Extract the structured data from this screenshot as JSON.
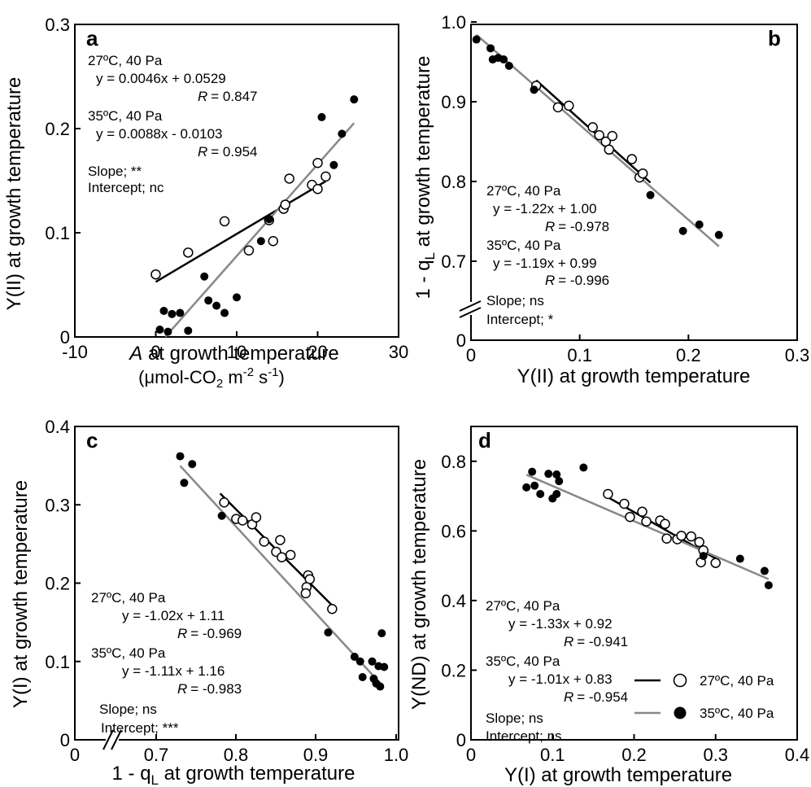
{
  "panels": [
    {
      "label": "a",
      "xlabel": "A at growth temperature",
      "xlabel_italic_prefix": "A",
      "xlabel_rest": " at growth temperature",
      "xunit": "(μmol-CO2 m-2 s-1)",
      "xunit_parts": [
        "(μmol-CO",
        "2",
        " m",
        "-2",
        " s",
        "-1",
        ")"
      ],
      "ylabel": "Y(II) at growth temperature",
      "annotations": {
        "s1_head": "27ºC, 40 Pa",
        "s1_eq": "y = 0.0046x + 0.0529",
        "s1_r": "= 0.847",
        "s2_head": "35ºC, 40 Pa",
        "s2_eq": "y = 0.0088x - 0.0103",
        "s2_r": "= 0.954",
        "slope": "Slope; **",
        "intercept": "Intercept; nc"
      }
    },
    {
      "label": "b",
      "xlabel": "Y(II) at growth temperature",
      "ylabel": "1 - qL at growth temperature",
      "ylabel_parts": [
        "1 - q",
        "L",
        " at growth temperature"
      ],
      "annotations": {
        "s1_head": "27ºC, 40 Pa",
        "s1_eq": "y = -1.22x + 1.00",
        "s1_r": "= -0.978",
        "s2_head": "35ºC, 40 Pa",
        "s2_eq": "y = -1.19x + 0.99",
        "s2_r": "= -0.996",
        "slope": "Slope; ns",
        "intercept": "Intercept; *"
      }
    },
    {
      "label": "c",
      "xlabel": "1 - qL at growth temperature",
      "xlabel_parts": [
        "1 - q",
        "L",
        " at growth temperature"
      ],
      "ylabel": "Y(I) at growth temperature",
      "annotations": {
        "s1_head": "27ºC, 40 Pa",
        "s1_eq": "y = -1.02x + 1.11",
        "s1_r": "= -0.969",
        "s2_head": "35ºC, 40 Pa",
        "s2_eq": "y = -1.11x + 1.16",
        "s2_r": "= -0.983",
        "slope": "Slope; ns",
        "intercept": "Intercept; ***"
      }
    },
    {
      "label": "d",
      "xlabel": "Y(I) at growth temperature",
      "ylabel": "Y(ND) at growth temperature",
      "annotations": {
        "s1_head": "27ºC, 40 Pa",
        "s1_eq": "y = -1.33x + 0.92",
        "s1_r": "= -0.941",
        "s2_head": "35ºC, 40 Pa",
        "s2_eq": "y = -1.01x + 0.83",
        "s2_r": "= -0.954",
        "slope": "Slope; ns",
        "intercept": "Intercept; ns"
      }
    }
  ],
  "r_symbol": "R",
  "legend": {
    "s1": "27ºC, 40 Pa",
    "s2": "35ºC, 40 Pa"
  },
  "colors": {
    "s1_line": "#000000",
    "s2_line": "#888888",
    "marker_open_fill": "#ffffff",
    "marker_filled": "#000000"
  },
  "chart_data": [
    {
      "type": "scatter",
      "panel": "a",
      "xlim": [
        -10,
        30
      ],
      "ylim": [
        0,
        0.3
      ],
      "xticks": [
        "-10",
        "0",
        "10",
        "20",
        "30"
      ],
      "yticks": [
        "0",
        "0.1",
        "0.2",
        "0.3"
      ],
      "series": [
        {
          "name": "27ºC, 40 Pa",
          "marker": "open",
          "points": [
            [
              0,
              0.06
            ],
            [
              4,
              0.081
            ],
            [
              8.5,
              0.111
            ],
            [
              11.5,
              0.083
            ],
            [
              14,
              0.112
            ],
            [
              14.5,
              0.092
            ],
            [
              15.8,
              0.123
            ],
            [
              16,
              0.127
            ],
            [
              16.5,
              0.152
            ],
            [
              19.3,
              0.146
            ],
            [
              20,
              0.142
            ],
            [
              20,
              0.167
            ],
            [
              21,
              0.154
            ]
          ],
          "fit": {
            "slope": 0.0046,
            "intercept": 0.0529,
            "x_range": [
              0,
              21
            ]
          }
        },
        {
          "name": "35ºC, 40 Pa",
          "marker": "filled",
          "points": [
            [
              0.5,
              0.007
            ],
            [
              1,
              0.025
            ],
            [
              1.5,
              0.005
            ],
            [
              2,
              0.022
            ],
            [
              3,
              0.023
            ],
            [
              4,
              0.006
            ],
            [
              6,
              0.058
            ],
            [
              6.5,
              0.035
            ],
            [
              7.5,
              0.03
            ],
            [
              8.5,
              0.023
            ],
            [
              10,
              0.038
            ],
            [
              13,
              0.092
            ],
            [
              14,
              0.113
            ],
            [
              20.5,
              0.211
            ],
            [
              22,
              0.165
            ],
            [
              23,
              0.195
            ],
            [
              24.5,
              0.228
            ]
          ],
          "fit": {
            "slope": 0.0088,
            "intercept": -0.0103,
            "x_range": [
              1.2,
              24.5
            ]
          }
        }
      ]
    },
    {
      "type": "scatter",
      "panel": "b",
      "xlim": [
        0,
        0.3
      ],
      "ylim": [
        0.65,
        1.0
      ],
      "y_axis_break": true,
      "xticks": [
        "0",
        "0.1",
        "0.2",
        "0.3"
      ],
      "yticks": [
        "0",
        "0.7",
        "0.8",
        "0.9",
        "1.0"
      ],
      "series": [
        {
          "name": "27ºC, 40 Pa",
          "marker": "open",
          "points": [
            [
              0.06,
              0.92
            ],
            [
              0.08,
              0.893
            ],
            [
              0.09,
              0.895
            ],
            [
              0.112,
              0.868
            ],
            [
              0.118,
              0.858
            ],
            [
              0.124,
              0.85
            ],
            [
              0.127,
              0.84
            ],
            [
              0.13,
              0.857
            ],
            [
              0.148,
              0.828
            ],
            [
              0.155,
              0.805
            ],
            [
              0.158,
              0.81
            ]
          ],
          "fit": {
            "slope": -1.22,
            "intercept": 1.0,
            "x_range": [
              0.06,
              0.165
            ]
          }
        },
        {
          "name": "35ºC, 40 Pa",
          "marker": "filled",
          "points": [
            [
              0.005,
              0.978
            ],
            [
              0.018,
              0.967
            ],
            [
              0.02,
              0.953
            ],
            [
              0.025,
              0.955
            ],
            [
              0.03,
              0.953
            ],
            [
              0.035,
              0.945
            ],
            [
              0.058,
              0.915
            ],
            [
              0.165,
              0.783
            ],
            [
              0.195,
              0.738
            ],
            [
              0.21,
              0.746
            ],
            [
              0.228,
              0.733
            ]
          ],
          "fit": {
            "slope": -1.19,
            "intercept": 0.99,
            "x_range": [
              0.005,
              0.228
            ]
          }
        }
      ]
    },
    {
      "type": "scatter",
      "panel": "c",
      "xlim": [
        0.6,
        1.0
      ],
      "ylim": [
        0,
        0.4
      ],
      "x_axis_break": true,
      "xticks": [
        "0",
        "0.7",
        "0.8",
        "0.9",
        "1.0"
      ],
      "yticks": [
        "0",
        "0.1",
        "0.2",
        "0.3",
        "0.4"
      ],
      "series": [
        {
          "name": "27ºC, 40 Pa",
          "marker": "open",
          "points": [
            [
              0.785,
              0.303
            ],
            [
              0.8,
              0.282
            ],
            [
              0.808,
              0.28
            ],
            [
              0.82,
              0.275
            ],
            [
              0.825,
              0.284
            ],
            [
              0.835,
              0.253
            ],
            [
              0.85,
              0.24
            ],
            [
              0.855,
              0.255
            ],
            [
              0.857,
              0.233
            ],
            [
              0.868,
              0.236
            ],
            [
              0.89,
              0.21
            ],
            [
              0.892,
              0.205
            ],
            [
              0.888,
              0.195
            ],
            [
              0.887,
              0.187
            ],
            [
              0.92,
              0.167
            ]
          ],
          "fit": {
            "slope": -1.02,
            "intercept": 1.11,
            "x_range": [
              0.78,
              0.92
            ]
          }
        },
        {
          "name": "35ºC, 40 Pa",
          "marker": "filled",
          "points": [
            [
              0.73,
              0.362
            ],
            [
              0.735,
              0.328
            ],
            [
              0.745,
              0.352
            ],
            [
              0.782,
              0.286
            ],
            [
              0.915,
              0.137
            ],
            [
              0.948,
              0.106
            ],
            [
              0.955,
              0.1
            ],
            [
              0.958,
              0.08
            ],
            [
              0.97,
              0.1
            ],
            [
              0.972,
              0.078
            ],
            [
              0.975,
              0.072
            ],
            [
              0.98,
              0.068
            ],
            [
              0.978,
              0.094
            ],
            [
              0.982,
              0.136
            ],
            [
              0.985,
              0.093
            ]
          ],
          "fit": {
            "slope": -1.11,
            "intercept": 1.16,
            "x_range": [
              0.73,
              0.982
            ]
          }
        }
      ]
    },
    {
      "type": "scatter",
      "panel": "d",
      "xlim": [
        0,
        0.4
      ],
      "ylim": [
        0,
        0.9
      ],
      "xticks": [
        "0",
        "0.1",
        "0.2",
        "0.3",
        "0.4"
      ],
      "yticks": [
        "0",
        "0.2",
        "0.4",
        "0.6",
        "0.8"
      ],
      "legend_position": "bottom-right",
      "series": [
        {
          "name": "27ºC, 40 Pa",
          "marker": "open",
          "points": [
            [
              0.168,
              0.706
            ],
            [
              0.188,
              0.678
            ],
            [
              0.195,
              0.64
            ],
            [
              0.21,
              0.655
            ],
            [
              0.215,
              0.627
            ],
            [
              0.232,
              0.63
            ],
            [
              0.238,
              0.62
            ],
            [
              0.24,
              0.578
            ],
            [
              0.253,
              0.576
            ],
            [
              0.258,
              0.586
            ],
            [
              0.27,
              0.584
            ],
            [
              0.28,
              0.568
            ],
            [
              0.282,
              0.51
            ],
            [
              0.285,
              0.544
            ],
            [
              0.3,
              0.508
            ]
          ],
          "fit": {
            "slope": -1.33,
            "intercept": 0.92,
            "x_range": [
              0.168,
              0.3
            ]
          }
        },
        {
          "name": "35ºC, 40 Pa",
          "marker": "filled",
          "points": [
            [
              0.068,
              0.725
            ],
            [
              0.075,
              0.77
            ],
            [
              0.078,
              0.73
            ],
            [
              0.085,
              0.706
            ],
            [
              0.095,
              0.764
            ],
            [
              0.1,
              0.693
            ],
            [
              0.105,
              0.706
            ],
            [
              0.105,
              0.762
            ],
            [
              0.108,
              0.743
            ],
            [
              0.138,
              0.782
            ],
            [
              0.285,
              0.528
            ],
            [
              0.33,
              0.52
            ],
            [
              0.36,
              0.485
            ],
            [
              0.365,
              0.444
            ]
          ],
          "fit": {
            "slope": -1.01,
            "intercept": 0.83,
            "x_range": [
              0.068,
              0.365
            ]
          }
        }
      ]
    }
  ]
}
